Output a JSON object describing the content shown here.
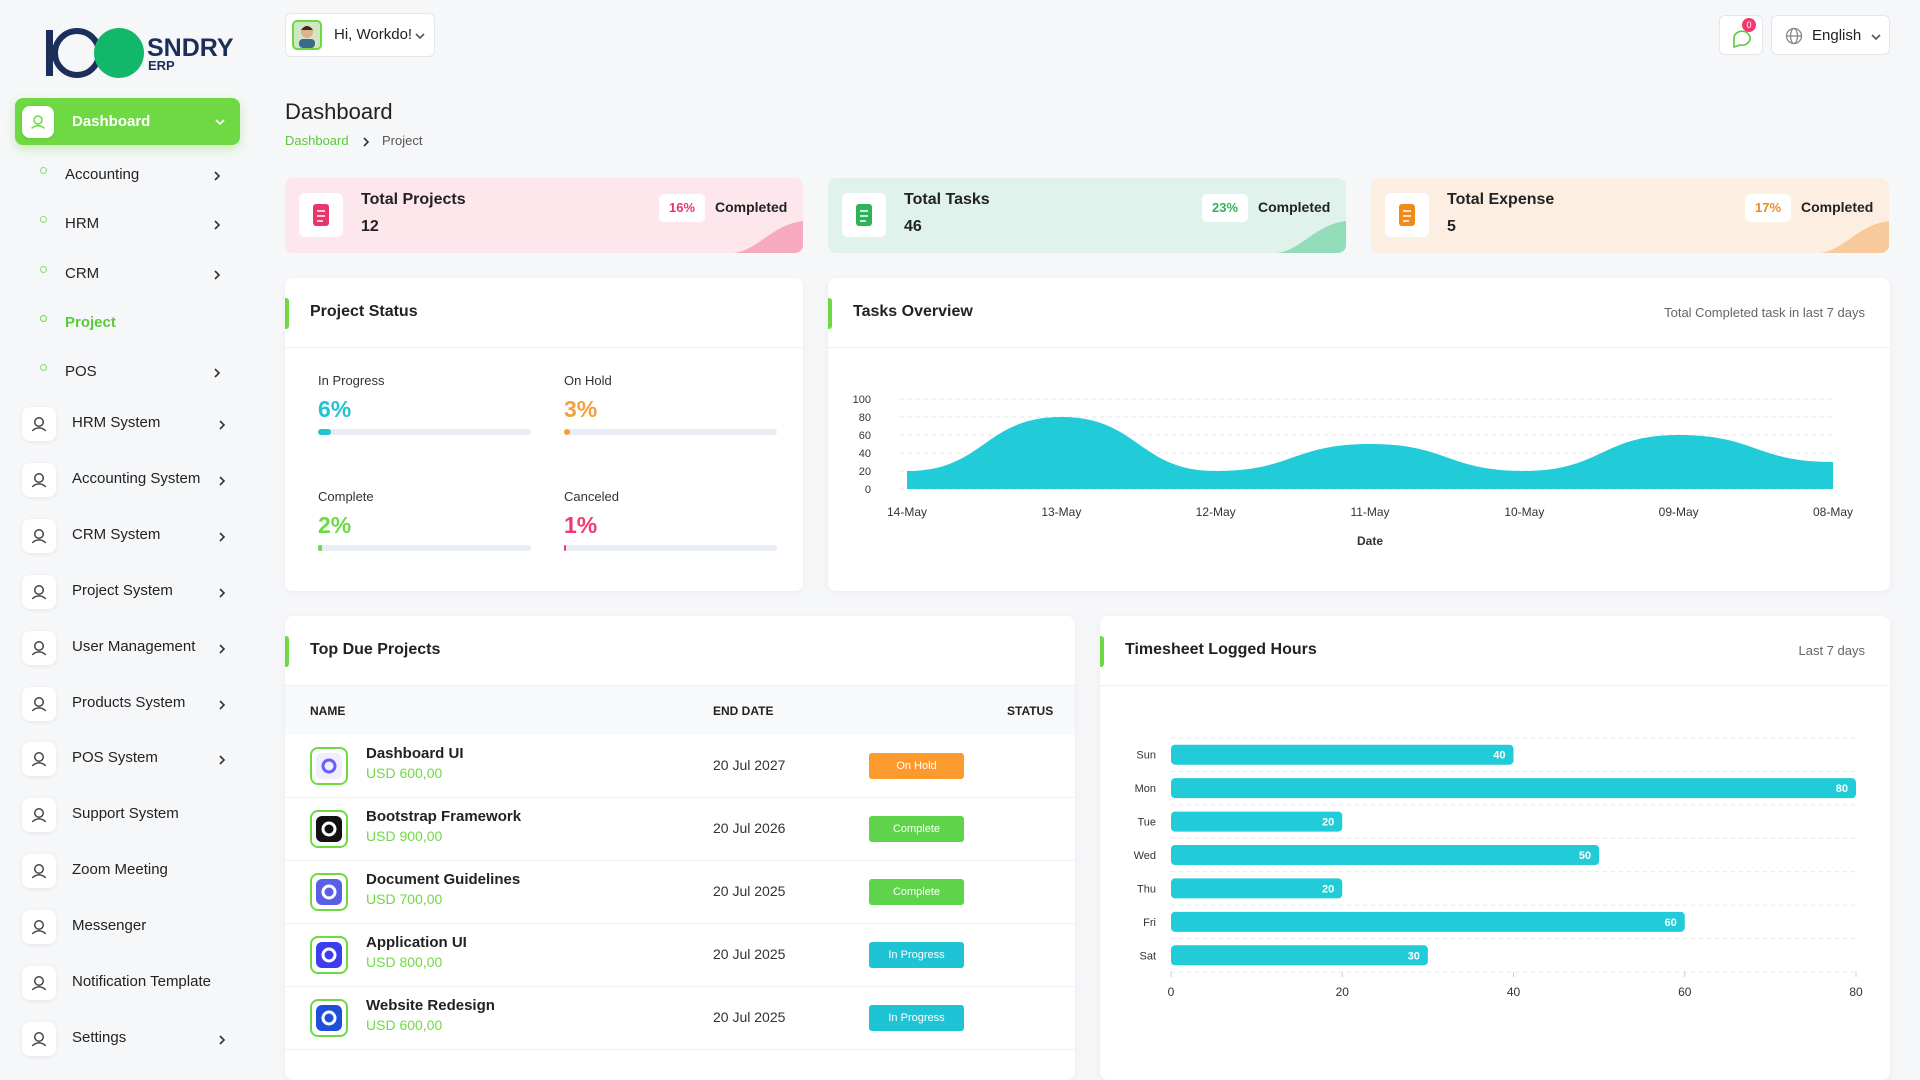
{
  "brand": {
    "name": "SNDRY",
    "tagline": "ERP"
  },
  "header": {
    "greeting": "Hi, Workdo!",
    "notification_count": 0,
    "language": "English"
  },
  "sidebar": {
    "items": [
      {
        "label": "Dashboard",
        "active": true,
        "children": [
          {
            "label": "Accounting",
            "expandable": true
          },
          {
            "label": "HRM",
            "expandable": true
          },
          {
            "label": "CRM",
            "expandable": true
          },
          {
            "label": "Project",
            "active": true
          },
          {
            "label": "POS",
            "expandable": true
          }
        ]
      },
      {
        "label": "HRM System",
        "expandable": true
      },
      {
        "label": "Accounting System",
        "expandable": true
      },
      {
        "label": "CRM System",
        "expandable": true
      },
      {
        "label": "Project System",
        "expandable": true
      },
      {
        "label": "User Management",
        "expandable": true
      },
      {
        "label": "Products System",
        "expandable": true
      },
      {
        "label": "POS System",
        "expandable": true
      },
      {
        "label": "Support System"
      },
      {
        "label": "Zoom Meeting"
      },
      {
        "label": "Messenger"
      },
      {
        "label": "Notification Template"
      },
      {
        "label": "Settings",
        "expandable": true
      }
    ]
  },
  "page": {
    "title": "Dashboard",
    "breadcrumb": [
      "Dashboard",
      "Project"
    ]
  },
  "stats": [
    {
      "title": "Total Projects",
      "value": 12,
      "percent": "16%",
      "status": "Completed"
    },
    {
      "title": "Total Tasks",
      "value": 46,
      "percent": "23%",
      "status": "Completed"
    },
    {
      "title": "Total Expense",
      "value": 5,
      "percent": "17%",
      "status": "Completed"
    }
  ],
  "project_status": {
    "title": "Project Status",
    "items": [
      {
        "label": "In Progress",
        "value": 6,
        "value_label": "6%",
        "color": "#22c3d3"
      },
      {
        "label": "On Hold",
        "value": 3,
        "value_label": "3%",
        "color": "#f5a03a"
      },
      {
        "label": "Complete",
        "value": 2,
        "value_label": "2%",
        "color": "#6fd943"
      },
      {
        "label": "Canceled",
        "value": 1,
        "value_label": "1%",
        "color": "#ef3a6f"
      }
    ]
  },
  "tasks_overview": {
    "title": "Tasks Overview",
    "subtitle": "Total Completed task in last 7 days",
    "chart": {
      "type": "area",
      "categories": [
        "14-May",
        "13-May",
        "12-May",
        "11-May",
        "10-May",
        "09-May",
        "08-May"
      ],
      "values": [
        20,
        80,
        20,
        50,
        20,
        60,
        30
      ],
      "ylim": [
        0,
        100
      ],
      "yticks": [
        0,
        20,
        40,
        60,
        80,
        100
      ],
      "xlabel": "Date",
      "color": "#22cbd8",
      "grid": true
    }
  },
  "top_due_projects": {
    "title": "Top Due Projects",
    "columns": [
      "NAME",
      "END DATE",
      "STATUS"
    ],
    "rows": [
      {
        "name": "Dashboard UI",
        "amount": "USD 600,00",
        "end_date": "20 Jul 2027",
        "status": "On Hold",
        "status_color": "#fd9a2d"
      },
      {
        "name": "Bootstrap Framework",
        "amount": "USD 900,00",
        "end_date": "20 Jul 2026",
        "status": "Complete",
        "status_color": "#5fd34a"
      },
      {
        "name": "Document Guidelines",
        "amount": "USD 700,00",
        "end_date": "20 Jul 2025",
        "status": "Complete",
        "status_color": "#5fd34a"
      },
      {
        "name": "Application UI",
        "amount": "USD 800,00",
        "end_date": "20 Jul 2025",
        "status": "In Progress",
        "status_color": "#1ec4d6"
      },
      {
        "name": "Website Redesign",
        "amount": "USD 600,00",
        "end_date": "20 Jul 2025",
        "status": "In Progress",
        "status_color": "#1ec4d6"
      }
    ]
  },
  "timesheet": {
    "title": "Timesheet Logged Hours",
    "subtitle": "Last 7 days",
    "chart": {
      "type": "hbar",
      "categories": [
        "Sun",
        "Mon",
        "Tue",
        "Wed",
        "Thu",
        "Fri",
        "Sat"
      ],
      "values": [
        40,
        80,
        20,
        50,
        20,
        60,
        30
      ],
      "xlim": [
        0,
        80
      ],
      "xticks": [
        0,
        20,
        40,
        60,
        80
      ],
      "color": "#22cbd8"
    }
  }
}
